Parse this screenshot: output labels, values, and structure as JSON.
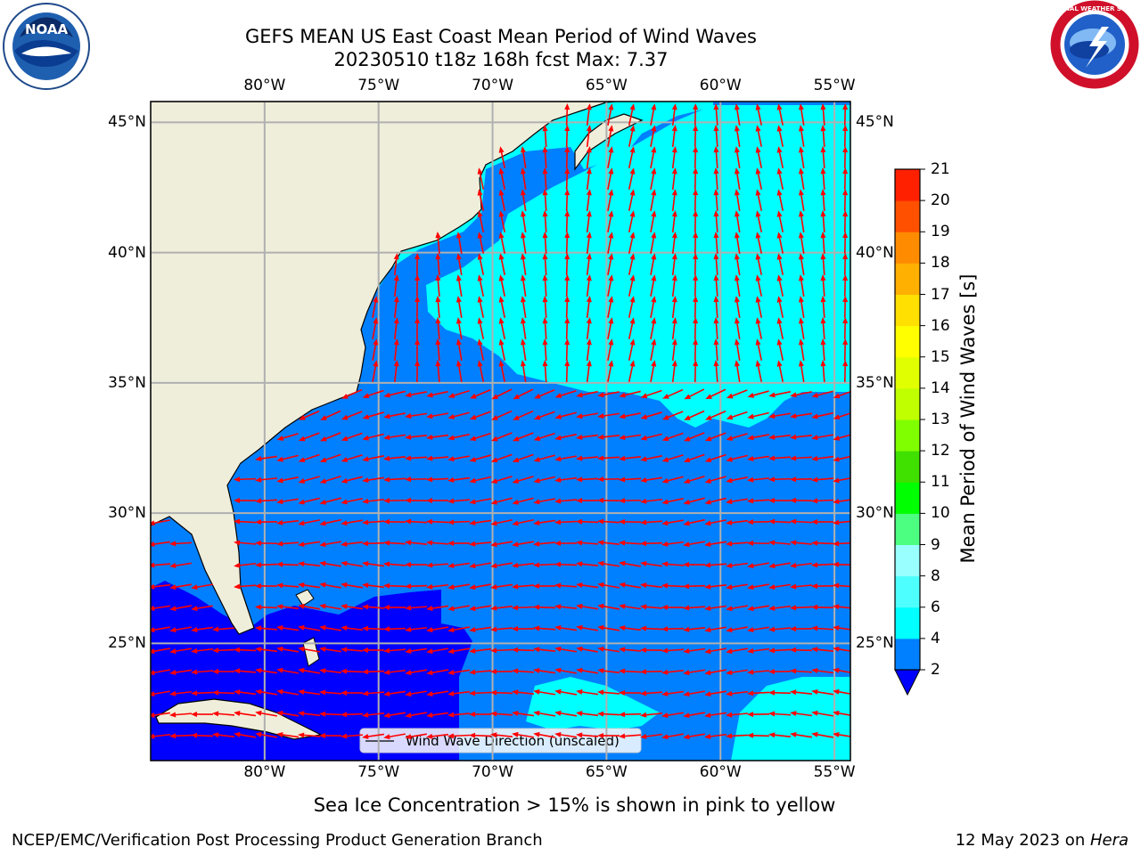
{
  "header": {
    "title_line1": "GEFS MEAN US East Coast Mean Period of Wind Waves",
    "title_line2": "20230510 t18z 168h fcst   Max: 7.37"
  },
  "logos": {
    "left": {
      "name": "NOAA",
      "ring_text": "NATIONAL OCEANIC AND ATMOSPHERIC ADMINISTRATION · U.S. DEPARTMENT OF COMMERCE"
    },
    "right": {
      "name": "NATIONAL WEATHER SERVICE"
    }
  },
  "map": {
    "lon_labels": [
      "80°W",
      "75°W",
      "70°W",
      "65°W",
      "60°W",
      "55°W"
    ],
    "lat_labels": [
      "45°N",
      "40°N",
      "35°N",
      "30°N",
      "25°N"
    ],
    "lon_range": [
      -85,
      -54.3
    ],
    "lat_range": [
      20.5,
      45.8
    ],
    "legend": "Wind Wave Direction (unscaled)",
    "colors": {
      "land": "#efeedb",
      "level_2_4": "#0080ff",
      "level_4_6": "#00ffff",
      "under_2": "#0000ff",
      "arrows": "#ff0000"
    }
  },
  "colorbar": {
    "label": "Mean Period of Wind Waves [s]",
    "ticks": [
      "2",
      "4",
      "6",
      "8",
      "9",
      "10",
      "11",
      "12",
      "13",
      "14",
      "15",
      "16",
      "17",
      "18",
      "19",
      "20",
      "21"
    ],
    "colors": [
      "#0080ff",
      "#00ffff",
      "#4dffff",
      "#99ffff",
      "#4dff80",
      "#00ff00",
      "#40e000",
      "#80ff00",
      "#c0ff00",
      "#e0ff00",
      "#ffff00",
      "#ffe000",
      "#ffb000",
      "#ff8c00",
      "#ff5000",
      "#ff2000"
    ],
    "under_color": "#0000ff"
  },
  "notes": {
    "sea_ice": "Sea Ice Concentration > 15% is shown in pink to yellow"
  },
  "footer": {
    "left": "NCEP/EMC/Verification Post Processing Product Generation Branch",
    "right_date": "12 May 2023 on ",
    "right_machine": "Hera"
  }
}
